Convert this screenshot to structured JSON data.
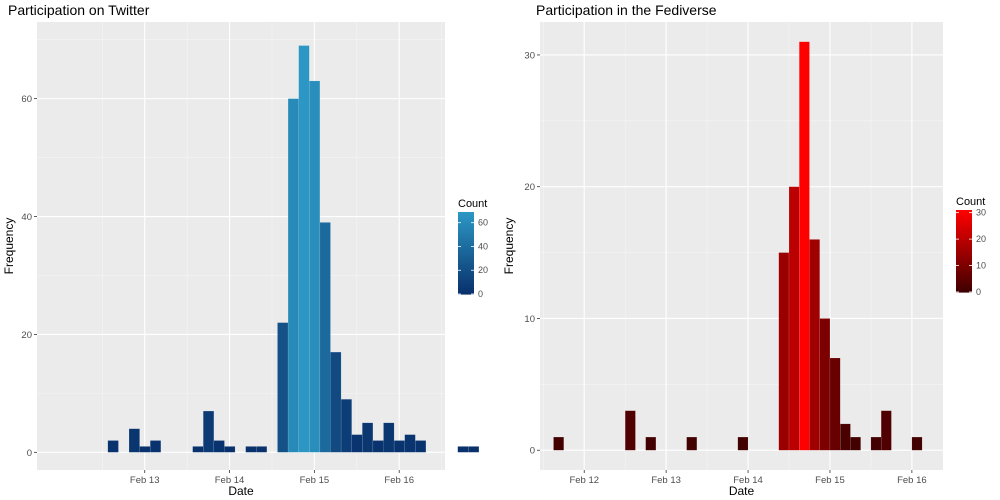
{
  "chart_data": [
    {
      "type": "bar",
      "title": "Participation on Twitter",
      "xlabel": "Date",
      "ylabel": "Frequency",
      "ylim": [
        -3,
        73
      ],
      "yticks": [
        0,
        20,
        40,
        60
      ],
      "xticks": [
        "Feb 13",
        "Feb 14",
        "Feb 15",
        "Feb 16"
      ],
      "xtick_days": [
        1,
        2,
        3,
        4
      ],
      "xlim_days": [
        -0.27,
        4.54
      ],
      "bin_width_days": 0.125,
      "first_bin_start_days": 0.44,
      "values": [
        0,
        2,
        0,
        4,
        1,
        2,
        0,
        0,
        0,
        1,
        7,
        2,
        1,
        0,
        1,
        1,
        0,
        22,
        60,
        69,
        63,
        39,
        17,
        9,
        3,
        5,
        2,
        5,
        2,
        3,
        2,
        0,
        0,
        0,
        1,
        1
      ],
      "grid": true,
      "legend": {
        "title": "Count",
        "position": "right",
        "ticks": [
          0,
          20,
          40,
          60
        ],
        "range": [
          0,
          69
        ],
        "low_color": "#08306b",
        "high_color": "#2c97c4"
      }
    },
    {
      "type": "bar",
      "title": "Participation in the Fediverse",
      "xlabel": "Date",
      "ylabel": "Frequency",
      "ylim": [
        -1.5,
        32.5
      ],
      "yticks": [
        0,
        10,
        20,
        30
      ],
      "xticks": [
        "Feb 12",
        "Feb 13",
        "Feb 14",
        "Feb 15",
        "Feb 16"
      ],
      "xtick_days": [
        0,
        1,
        2,
        3,
        4
      ],
      "xlim_days": [
        -0.54,
        4.38
      ],
      "bin_width_days": 0.125,
      "first_bin_start_days": -0.375,
      "values": [
        1,
        0,
        0,
        0,
        0,
        0,
        0,
        3,
        0,
        1,
        0,
        0,
        0,
        1,
        0,
        0,
        0,
        0,
        1,
        0,
        0,
        0,
        15,
        20,
        31,
        16,
        10,
        7,
        2,
        1,
        0,
        1,
        3,
        0,
        0,
        1
      ],
      "grid": true,
      "legend": {
        "title": "Count",
        "position": "right",
        "ticks": [
          0,
          10,
          20,
          30
        ],
        "range": [
          0,
          31
        ],
        "low_color": "#3d0000",
        "high_color": "#ff0000"
      }
    }
  ]
}
